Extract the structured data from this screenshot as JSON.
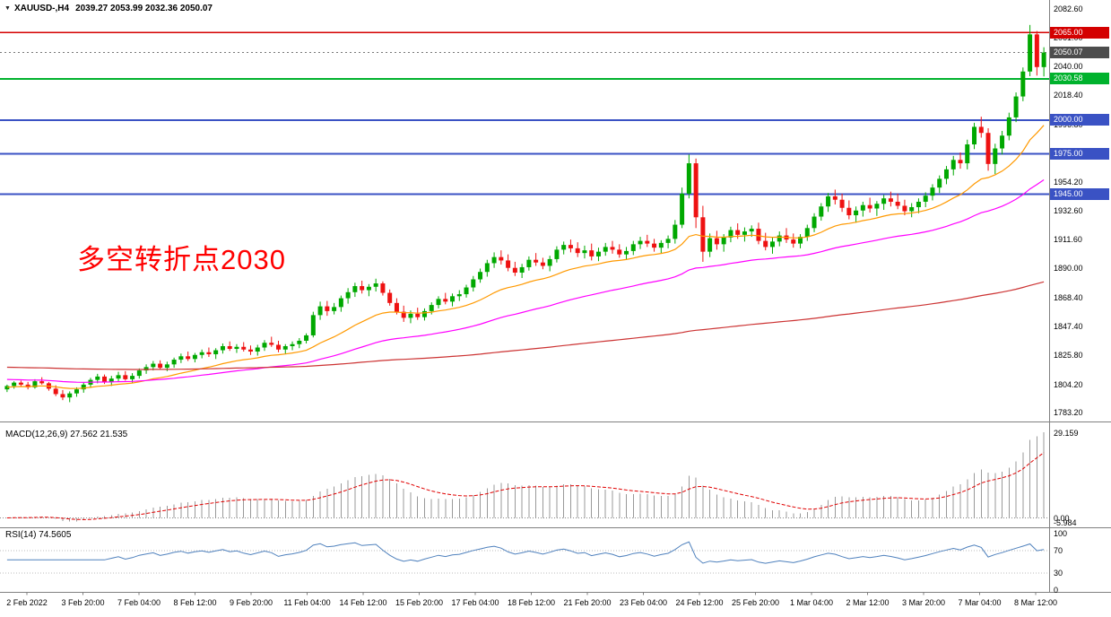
{
  "header": {
    "collapse_icon": "▼",
    "symbol": "XAUUSD-,H4",
    "ohlc": "2039.27 2053.99 2032.36 2050.07"
  },
  "annotation": {
    "text": "多空转折点2030",
    "color": "#FF0000"
  },
  "price_axis": {
    "labels": [
      "2082.60",
      "2061.00",
      "2040.00",
      "2018.40",
      "1996.80",
      "1975.20",
      "1954.20",
      "1932.60",
      "1911.60",
      "1890.00",
      "1868.40",
      "1847.40",
      "1825.80",
      "1804.20",
      "1783.20"
    ],
    "min": 1783.2,
    "max": 2082.6
  },
  "time_axis": {
    "labels": [
      "2 Feb 2022",
      "3 Feb 20:00",
      "7 Feb 04:00",
      "8 Feb 12:00",
      "9 Feb 20:00",
      "11 Feb 04:00",
      "14 Feb 12:00",
      "15 Feb 20:00",
      "17 Feb 04:00",
      "18 Feb 12:00",
      "21 Feb 20:00",
      "23 Feb 04:00",
      "24 Feb 12:00",
      "25 Feb 20:00",
      "1 Mar 04:00",
      "2 Mar 12:00",
      "3 Mar 20:00",
      "7 Mar 04:00",
      "8 Mar 12:00"
    ]
  },
  "levels": [
    {
      "price": 2065.0,
      "label": "2065.00",
      "color": "#D40000",
      "text_color": "#FFFFFF",
      "width": 1.5
    },
    {
      "price": 2030.58,
      "label": "2030.58",
      "color": "#00B22D",
      "text_color": "#FFFFFF",
      "width": 2
    },
    {
      "price": 2000.0,
      "label": "2000.00",
      "color": "#3A52C4",
      "text_color": "#FFFFFF",
      "width": 2
    },
    {
      "price": 1975.0,
      "label": "1975.00",
      "color": "#3A52C4",
      "text_color": "#FFFFFF",
      "width": 2
    },
    {
      "price": 1945.0,
      "label": "1945.00",
      "color": "#3A52C4",
      "text_color": "#FFFFFF",
      "width": 2
    }
  ],
  "current_price": {
    "value": 2050.07,
    "label": "2050.07",
    "badge_color": "#4D4D4D",
    "text_color": "#FFFFFF"
  },
  "indicators": {
    "macd": {
      "label": "MACD(12,26,9) 27.562 21.535",
      "fast": 12,
      "slow": 26,
      "signal": 9,
      "value": 27.562,
      "signal_value": 21.535,
      "axis_labels": [
        "29.159",
        "0.00",
        "-5.984"
      ]
    },
    "rsi": {
      "label": "RSI(14) 74.5605",
      "period": 14,
      "value": 74.5605,
      "axis_labels": [
        "100",
        "70",
        "30",
        "0"
      ],
      "axis_values": [
        100,
        70,
        30,
        0
      ],
      "levels": [
        70,
        30
      ]
    }
  },
  "colors": {
    "bull": "#00A800",
    "bear": "#EE1111",
    "macd_hist": "#999999",
    "macd_signal": "#E00000",
    "rsi_line": "#4F81BD",
    "separator": "#808080"
  },
  "chart_data": {
    "type": "candlestick",
    "title": "XAUUSD-,H4",
    "symbol": "XAUUSD-",
    "timeframe": "H4",
    "price_range": [
      1783.2,
      2082.6
    ],
    "ohlc_current": {
      "open": 2039.27,
      "high": 2053.99,
      "low": 2032.36,
      "close": 2050.07
    },
    "moving_averages": [
      {
        "name": "fast",
        "period": 20,
        "seed": 1802,
        "color": "#FF9900"
      },
      {
        "name": "mid",
        "period": 55,
        "seed": 1808,
        "color": "#FF00FF"
      },
      {
        "name": "slow",
        "period": 250,
        "seed": 1817,
        "color": "#CC3333"
      }
    ],
    "candles": [
      [
        1800.5,
        1804.0,
        1798.5,
        1803.0
      ],
      [
        1803.0,
        1806.5,
        1801.0,
        1805.5
      ],
      [
        1805.5,
        1807.0,
        1802.5,
        1804.0
      ],
      [
        1804.0,
        1806.0,
        1800.5,
        1802.0
      ],
      [
        1802.0,
        1808.0,
        1801.0,
        1806.5
      ],
      [
        1806.5,
        1809.5,
        1804.0,
        1805.0
      ],
      [
        1805.0,
        1806.0,
        1799.5,
        1801.0
      ],
      [
        1801.0,
        1803.5,
        1795.5,
        1797.0
      ],
      [
        1797.0,
        1800.0,
        1792.5,
        1794.5
      ],
      [
        1794.5,
        1799.0,
        1791.0,
        1797.5
      ],
      [
        1797.5,
        1802.0,
        1795.0,
        1800.5
      ],
      [
        1800.5,
        1805.5,
        1798.0,
        1804.0
      ],
      [
        1804.0,
        1809.0,
        1801.5,
        1807.5
      ],
      [
        1807.5,
        1812.0,
        1805.0,
        1810.0
      ],
      [
        1810.0,
        1811.5,
        1804.5,
        1806.0
      ],
      [
        1806.0,
        1810.5,
        1803.0,
        1808.5
      ],
      [
        1808.5,
        1813.5,
        1806.5,
        1811.0
      ],
      [
        1811.0,
        1814.0,
        1807.0,
        1808.0
      ],
      [
        1808.0,
        1812.5,
        1805.5,
        1810.5
      ],
      [
        1810.5,
        1816.0,
        1808.5,
        1814.5
      ],
      [
        1814.5,
        1819.0,
        1812.0,
        1817.0
      ],
      [
        1817.0,
        1821.5,
        1814.5,
        1819.5
      ],
      [
        1819.5,
        1822.0,
        1815.0,
        1816.5
      ],
      [
        1816.5,
        1821.0,
        1814.0,
        1819.0
      ],
      [
        1819.0,
        1824.0,
        1816.5,
        1822.5
      ],
      [
        1822.5,
        1827.0,
        1820.0,
        1825.0
      ],
      [
        1825.0,
        1828.5,
        1821.5,
        1823.0
      ],
      [
        1823.0,
        1827.5,
        1820.5,
        1826.0
      ],
      [
        1826.0,
        1830.0,
        1823.5,
        1828.0
      ],
      [
        1828.0,
        1831.5,
        1824.5,
        1826.5
      ],
      [
        1826.5,
        1831.0,
        1823.0,
        1829.5
      ],
      [
        1829.5,
        1834.5,
        1827.0,
        1832.5
      ],
      [
        1832.5,
        1836.0,
        1829.0,
        1830.5
      ],
      [
        1830.5,
        1834.0,
        1827.5,
        1832.0
      ],
      [
        1832.0,
        1835.5,
        1828.5,
        1830.0
      ],
      [
        1830.0,
        1833.0,
        1826.0,
        1828.5
      ],
      [
        1828.5,
        1833.5,
        1825.5,
        1831.5
      ],
      [
        1831.5,
        1837.0,
        1829.0,
        1835.0
      ],
      [
        1835.0,
        1839.5,
        1832.0,
        1833.5
      ],
      [
        1833.5,
        1836.5,
        1828.0,
        1830.0
      ],
      [
        1830.0,
        1834.0,
        1826.5,
        1832.5
      ],
      [
        1832.5,
        1836.0,
        1829.5,
        1834.0
      ],
      [
        1834.0,
        1838.5,
        1831.0,
        1836.5
      ],
      [
        1836.5,
        1842.0,
        1834.5,
        1840.5
      ],
      [
        1840.5,
        1858.0,
        1839.0,
        1855.5
      ],
      [
        1855.5,
        1865.5,
        1852.0,
        1862.0
      ],
      [
        1862.0,
        1866.0,
        1855.0,
        1858.5
      ],
      [
        1858.5,
        1864.5,
        1856.0,
        1861.5
      ],
      [
        1861.5,
        1870.0,
        1858.0,
        1868.0
      ],
      [
        1868.0,
        1875.5,
        1864.0,
        1872.5
      ],
      [
        1872.5,
        1879.5,
        1869.0,
        1877.0
      ],
      [
        1877.0,
        1881.0,
        1871.5,
        1874.0
      ],
      [
        1874.0,
        1878.5,
        1869.5,
        1876.5
      ],
      [
        1876.5,
        1882.5,
        1873.0,
        1879.0
      ],
      [
        1879.0,
        1880.5,
        1870.0,
        1872.0
      ],
      [
        1872.0,
        1874.5,
        1862.5,
        1864.5
      ],
      [
        1864.5,
        1868.0,
        1856.0,
        1858.0
      ],
      [
        1858.0,
        1862.5,
        1850.5,
        1853.5
      ],
      [
        1853.5,
        1859.0,
        1849.5,
        1856.5
      ],
      [
        1856.5,
        1861.0,
        1852.0,
        1854.0
      ],
      [
        1854.0,
        1860.5,
        1851.5,
        1858.5
      ],
      [
        1858.5,
        1865.0,
        1856.0,
        1863.0
      ],
      [
        1863.0,
        1869.5,
        1860.5,
        1867.5
      ],
      [
        1867.5,
        1872.0,
        1863.5,
        1865.5
      ],
      [
        1865.5,
        1871.5,
        1862.0,
        1869.5
      ],
      [
        1869.5,
        1874.0,
        1866.0,
        1871.0
      ],
      [
        1871.0,
        1878.0,
        1868.5,
        1876.0
      ],
      [
        1876.0,
        1884.5,
        1873.0,
        1882.0
      ],
      [
        1882.0,
        1890.0,
        1879.5,
        1887.5
      ],
      [
        1887.5,
        1896.5,
        1884.0,
        1894.0
      ],
      [
        1894.0,
        1902.0,
        1890.5,
        1898.5
      ],
      [
        1898.5,
        1903.5,
        1893.0,
        1896.0
      ],
      [
        1896.0,
        1900.5,
        1888.0,
        1890.5
      ],
      [
        1890.5,
        1895.0,
        1884.5,
        1887.0
      ],
      [
        1887.0,
        1893.5,
        1883.0,
        1891.0
      ],
      [
        1891.0,
        1899.0,
        1888.5,
        1896.5
      ],
      [
        1896.5,
        1901.5,
        1892.0,
        1894.5
      ],
      [
        1894.5,
        1898.0,
        1889.5,
        1892.0
      ],
      [
        1892.0,
        1899.5,
        1888.0,
        1897.0
      ],
      [
        1897.0,
        1906.5,
        1894.5,
        1904.0
      ],
      [
        1904.0,
        1910.0,
        1900.5,
        1907.5
      ],
      [
        1907.5,
        1911.5,
        1902.0,
        1905.0
      ],
      [
        1905.0,
        1909.5,
        1898.5,
        1901.5
      ],
      [
        1901.5,
        1907.0,
        1897.5,
        1903.5
      ],
      [
        1903.5,
        1908.5,
        1896.0,
        1899.0
      ],
      [
        1899.0,
        1905.5,
        1895.5,
        1902.5
      ],
      [
        1902.5,
        1909.0,
        1899.5,
        1906.0
      ],
      [
        1906.0,
        1910.5,
        1901.0,
        1904.0
      ],
      [
        1904.0,
        1908.0,
        1898.0,
        1900.5
      ],
      [
        1900.5,
        1906.0,
        1897.0,
        1903.0
      ],
      [
        1903.0,
        1910.5,
        1900.0,
        1908.0
      ],
      [
        1908.0,
        1913.5,
        1904.5,
        1910.5
      ],
      [
        1910.5,
        1915.0,
        1906.0,
        1908.5
      ],
      [
        1908.5,
        1912.0,
        1902.5,
        1905.5
      ],
      [
        1905.5,
        1911.0,
        1901.5,
        1909.0
      ],
      [
        1909.0,
        1914.5,
        1905.0,
        1912.0
      ],
      [
        1912.0,
        1926.0,
        1908.5,
        1922.5
      ],
      [
        1922.5,
        1950.0,
        1920.0,
        1945.5
      ],
      [
        1945.5,
        1974.5,
        1942.0,
        1968.0
      ],
      [
        1968.0,
        1971.5,
        1920.0,
        1928.0
      ],
      [
        1928.0,
        1936.5,
        1895.0,
        1902.5
      ],
      [
        1902.5,
        1916.0,
        1898.5,
        1912.5
      ],
      [
        1912.5,
        1918.0,
        1904.0,
        1908.0
      ],
      [
        1908.0,
        1915.5,
        1902.5,
        1913.0
      ],
      [
        1913.0,
        1921.0,
        1909.5,
        1918.5
      ],
      [
        1918.5,
        1923.5,
        1912.0,
        1915.0
      ],
      [
        1915.0,
        1920.5,
        1910.0,
        1917.5
      ],
      [
        1917.5,
        1922.0,
        1913.5,
        1919.5
      ],
      [
        1919.5,
        1924.0,
        1908.0,
        1910.5
      ],
      [
        1910.5,
        1916.5,
        1903.5,
        1906.0
      ],
      [
        1906.0,
        1913.0,
        1901.0,
        1910.0
      ],
      [
        1910.0,
        1917.5,
        1906.5,
        1914.5
      ],
      [
        1914.5,
        1920.0,
        1909.0,
        1911.5
      ],
      [
        1911.5,
        1916.0,
        1905.5,
        1908.5
      ],
      [
        1908.5,
        1915.5,
        1905.0,
        1913.5
      ],
      [
        1913.5,
        1922.5,
        1910.5,
        1920.0
      ],
      [
        1920.0,
        1931.0,
        1917.0,
        1928.5
      ],
      [
        1928.5,
        1938.5,
        1925.5,
        1936.0
      ],
      [
        1936.0,
        1946.0,
        1932.0,
        1943.5
      ],
      [
        1943.5,
        1948.5,
        1937.5,
        1941.0
      ],
      [
        1941.0,
        1945.5,
        1932.0,
        1935.0
      ],
      [
        1935.0,
        1940.5,
        1926.5,
        1929.5
      ],
      [
        1929.5,
        1936.0,
        1924.0,
        1933.0
      ],
      [
        1933.0,
        1939.5,
        1928.5,
        1937.0
      ],
      [
        1937.0,
        1942.5,
        1931.5,
        1934.5
      ],
      [
        1934.5,
        1940.0,
        1929.0,
        1938.0
      ],
      [
        1938.0,
        1944.5,
        1933.5,
        1942.0
      ],
      [
        1942.0,
        1947.0,
        1936.0,
        1939.5
      ],
      [
        1939.5,
        1945.5,
        1934.0,
        1936.5
      ],
      [
        1936.5,
        1941.0,
        1929.5,
        1932.5
      ],
      [
        1932.5,
        1938.5,
        1928.0,
        1935.5
      ],
      [
        1935.5,
        1942.0,
        1931.0,
        1939.5
      ],
      [
        1939.5,
        1946.5,
        1935.5,
        1944.0
      ],
      [
        1944.0,
        1952.5,
        1940.5,
        1950.0
      ],
      [
        1950.0,
        1959.0,
        1946.0,
        1956.5
      ],
      [
        1956.5,
        1966.0,
        1952.5,
        1963.5
      ],
      [
        1963.5,
        1973.5,
        1959.0,
        1970.5
      ],
      [
        1970.5,
        1976.0,
        1964.0,
        1968.0
      ],
      [
        1968.0,
        1985.5,
        1963.5,
        1982.0
      ],
      [
        1982.0,
        1998.0,
        1978.5,
        1995.0
      ],
      [
        1995.0,
        2002.5,
        1987.0,
        1990.5
      ],
      [
        1990.5,
        1994.0,
        1962.5,
        1967.5
      ],
      [
        1967.5,
        1982.5,
        1960.0,
        1979.0
      ],
      [
        1979.0,
        1992.0,
        1974.5,
        1988.5
      ],
      [
        1988.5,
        2005.5,
        1985.0,
        2002.0
      ],
      [
        2002.0,
        2020.5,
        1998.5,
        2017.5
      ],
      [
        2017.5,
        2039.0,
        2014.0,
        2036.0
      ],
      [
        2036.0,
        2070.5,
        2032.5,
        2063.5
      ],
      [
        2063.5,
        2066.0,
        2033.0,
        2039.3
      ],
      [
        2039.27,
        2053.99,
        2032.36,
        2050.07
      ]
    ]
  }
}
